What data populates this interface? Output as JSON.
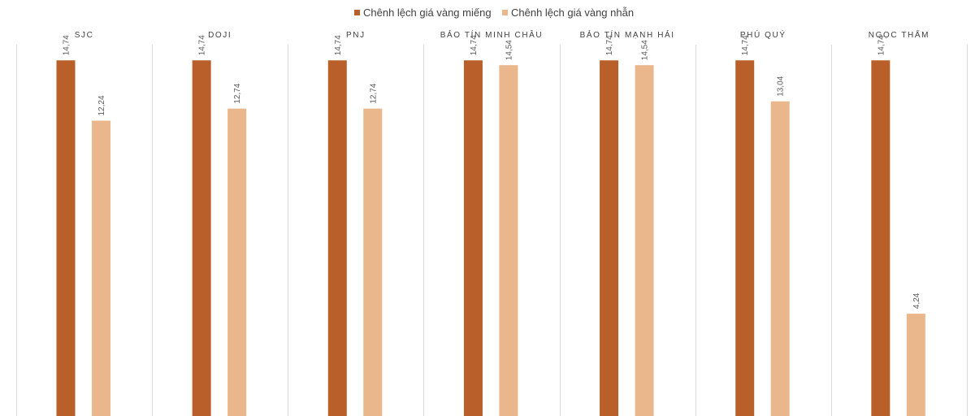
{
  "chart_data": {
    "type": "bar",
    "title": "",
    "xlabel": "",
    "ylabel": "",
    "ylim": [
      0,
      16.5
    ],
    "legend_position": "top-center",
    "categories": [
      "SJC",
      "DOJI",
      "PNJ",
      "BẢO TÍN MINH CHÂU",
      "BẢO TÍN MẠNH HẢI",
      "PHÚ QUÝ",
      "NGỌC THẨM"
    ],
    "series": [
      {
        "name": "Chênh lệch giá vàng miếng",
        "color": "#b85f2a",
        "values": [
          14.74,
          14.74,
          14.74,
          14.74,
          14.74,
          14.74,
          14.74
        ],
        "labels": [
          "14,74",
          "14,74",
          "14,74",
          "14,74",
          "14,74",
          "14,74",
          "14,74"
        ]
      },
      {
        "name": "Chênh lệch giá vàng nhẫn",
        "color": "#eab68c",
        "values": [
          12.24,
          12.74,
          12.74,
          14.54,
          14.54,
          13.04,
          4.24
        ],
        "labels": [
          "12,24",
          "12,74",
          "12,74",
          "14,54",
          "14,54",
          "13,04",
          "4,24"
        ]
      }
    ]
  }
}
